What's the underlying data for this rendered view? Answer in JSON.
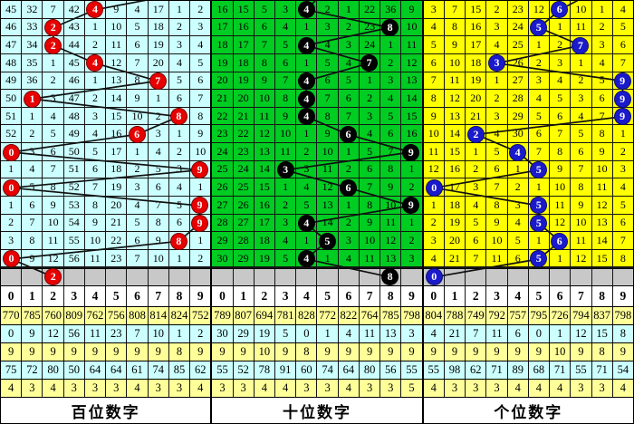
{
  "chart_data": {
    "type": "table",
    "digit_header": [
      "0",
      "1",
      "2",
      "3",
      "4",
      "5",
      "6",
      "7",
      "8",
      "9"
    ],
    "stat_row_colors": [
      "#ffff99",
      "#ccffff",
      "#ffff99",
      "#ccffff",
      "#ffff99"
    ],
    "gray_row_color": "#c8c8c8",
    "grid_line_color": "#151515",
    "panels": [
      {
        "name": "hundreds",
        "footer": "百位数字",
        "cell_color": "#ccffff",
        "ball_color": "#e60000",
        "line_top_exit_col": 9.5,
        "rows": [
          [
            "45",
            "32",
            "7",
            "42",
            "4",
            "9",
            "4",
            "17",
            "1",
            "2"
          ],
          [
            "46",
            "33",
            "2",
            "43",
            "1",
            "10",
            "5",
            "18",
            "2",
            "3"
          ],
          [
            "47",
            "34",
            "2",
            "44",
            "2",
            "11",
            "6",
            "19",
            "3",
            "4"
          ],
          [
            "48",
            "35",
            "1",
            "45",
            "4",
            "12",
            "7",
            "20",
            "4",
            "5"
          ],
          [
            "49",
            "36",
            "2",
            "46",
            "1",
            "13",
            "8",
            "7",
            "5",
            "6"
          ],
          [
            "50",
            "1",
            "3",
            "47",
            "2",
            "14",
            "9",
            "1",
            "6",
            "7"
          ],
          [
            "51",
            "1",
            "4",
            "48",
            "3",
            "15",
            "10",
            "2",
            "8",
            "8"
          ],
          [
            "52",
            "2",
            "5",
            "49",
            "4",
            "16",
            "6",
            "3",
            "1",
            "9"
          ],
          [
            "0",
            "3",
            "6",
            "50",
            "5",
            "17",
            "1",
            "4",
            "2",
            "10"
          ],
          [
            "1",
            "4",
            "7",
            "51",
            "6",
            "18",
            "2",
            "5",
            "3",
            "9"
          ],
          [
            "0",
            "5",
            "8",
            "52",
            "7",
            "19",
            "3",
            "6",
            "4",
            "1"
          ],
          [
            "1",
            "6",
            "9",
            "53",
            "8",
            "20",
            "4",
            "7",
            "5",
            "9"
          ],
          [
            "2",
            "7",
            "10",
            "54",
            "9",
            "21",
            "5",
            "8",
            "6",
            "9"
          ],
          [
            "3",
            "8",
            "11",
            "55",
            "10",
            "22",
            "6",
            "9",
            "8",
            "1"
          ],
          [
            "0",
            "9",
            "12",
            "56",
            "11",
            "23",
            "7",
            "10",
            "1",
            "2"
          ]
        ],
        "balls": [
          {
            "r": 0,
            "c": 4,
            "v": "4"
          },
          {
            "r": 1,
            "c": 2,
            "v": "2"
          },
          {
            "r": 2,
            "c": 2,
            "v": "2"
          },
          {
            "r": 3,
            "c": 4,
            "v": "4"
          },
          {
            "r": 4,
            "c": 7,
            "v": "7"
          },
          {
            "r": 5,
            "c": 1,
            "v": "1"
          },
          {
            "r": 6,
            "c": 8,
            "v": "8"
          },
          {
            "r": 7,
            "c": 6,
            "v": "6"
          },
          {
            "r": 8,
            "c": 0,
            "v": "0"
          },
          {
            "r": 9,
            "c": 9,
            "v": "9"
          },
          {
            "r": 10,
            "c": 0,
            "v": "0"
          },
          {
            "r": 11,
            "c": 9,
            "v": "9"
          },
          {
            "r": 12,
            "c": 9,
            "v": "9"
          },
          {
            "r": 13,
            "c": 8,
            "v": "8"
          },
          {
            "r": 14,
            "c": 0,
            "v": "0"
          },
          {
            "r": 15,
            "c": 2,
            "v": "2"
          }
        ],
        "stats": [
          [
            "770",
            "785",
            "760",
            "809",
            "762",
            "756",
            "808",
            "814",
            "824",
            "752"
          ],
          [
            "0",
            "9",
            "12",
            "56",
            "11",
            "23",
            "7",
            "10",
            "1",
            "2"
          ],
          [
            "9",
            "9",
            "9",
            "9",
            "9",
            "9",
            "9",
            "9",
            "8",
            "9"
          ],
          [
            "75",
            "72",
            "80",
            "50",
            "64",
            "64",
            "61",
            "74",
            "85",
            "62"
          ],
          [
            "4",
            "3",
            "4",
            "3",
            "3",
            "3",
            "4",
            "3",
            "3",
            "4"
          ]
        ]
      },
      {
        "name": "tens",
        "footer": "十位数字",
        "cell_color": "#00cc22",
        "ball_color": "#000000",
        "line_top_exit_col": 5.45,
        "rows": [
          [
            "16",
            "15",
            "5",
            "3",
            "4",
            "2",
            "1",
            "22",
            "36",
            "9"
          ],
          [
            "17",
            "16",
            "6",
            "4",
            "1",
            "3",
            "2",
            "23",
            "8",
            "10"
          ],
          [
            "18",
            "17",
            "7",
            "5",
            "4",
            "4",
            "3",
            "24",
            "1",
            "11"
          ],
          [
            "19",
            "18",
            "8",
            "6",
            "1",
            "5",
            "4",
            "7",
            "2",
            "12"
          ],
          [
            "20",
            "19",
            "9",
            "7",
            "4",
            "6",
            "5",
            "1",
            "3",
            "13"
          ],
          [
            "21",
            "20",
            "10",
            "8",
            "4",
            "7",
            "6",
            "2",
            "4",
            "14"
          ],
          [
            "22",
            "21",
            "11",
            "9",
            "4",
            "8",
            "7",
            "3",
            "5",
            "15"
          ],
          [
            "23",
            "22",
            "12",
            "10",
            "1",
            "9",
            "6",
            "4",
            "6",
            "16"
          ],
          [
            "24",
            "23",
            "13",
            "11",
            "2",
            "10",
            "1",
            "5",
            "7",
            "9"
          ],
          [
            "25",
            "24",
            "14",
            "3",
            "3",
            "11",
            "2",
            "6",
            "8",
            "1"
          ],
          [
            "26",
            "25",
            "15",
            "1",
            "4",
            "12",
            "6",
            "7",
            "9",
            "2"
          ],
          [
            "27",
            "26",
            "16",
            "2",
            "5",
            "13",
            "1",
            "8",
            "10",
            "9"
          ],
          [
            "28",
            "27",
            "17",
            "3",
            "4",
            "14",
            "2",
            "9",
            "11",
            "1"
          ],
          [
            "29",
            "28",
            "18",
            "4",
            "1",
            "5",
            "3",
            "10",
            "12",
            "2"
          ],
          [
            "30",
            "29",
            "19",
            "5",
            "4",
            "1",
            "4",
            "11",
            "13",
            "3"
          ]
        ],
        "balls": [
          {
            "r": 0,
            "c": 4,
            "v": "4"
          },
          {
            "r": 1,
            "c": 8,
            "v": "8"
          },
          {
            "r": 2,
            "c": 4,
            "v": "4"
          },
          {
            "r": 3,
            "c": 7,
            "v": "7"
          },
          {
            "r": 4,
            "c": 4,
            "v": "4"
          },
          {
            "r": 5,
            "c": 4,
            "v": "4"
          },
          {
            "r": 6,
            "c": 4,
            "v": "4"
          },
          {
            "r": 7,
            "c": 6,
            "v": "6"
          },
          {
            "r": 8,
            "c": 9,
            "v": "9"
          },
          {
            "r": 9,
            "c": 3,
            "v": "3"
          },
          {
            "r": 10,
            "c": 6,
            "v": "6"
          },
          {
            "r": 11,
            "c": 9,
            "v": "9"
          },
          {
            "r": 12,
            "c": 4,
            "v": "4"
          },
          {
            "r": 13,
            "c": 5,
            "v": "5"
          },
          {
            "r": 14,
            "c": 4,
            "v": "4"
          },
          {
            "r": 15,
            "c": 8,
            "v": "8"
          }
        ],
        "stats": [
          [
            "789",
            "807",
            "694",
            "781",
            "828",
            "772",
            "822",
            "764",
            "785",
            "798"
          ],
          [
            "30",
            "29",
            "19",
            "5",
            "0",
            "1",
            "4",
            "11",
            "13",
            "3"
          ],
          [
            "9",
            "9",
            "10",
            "9",
            "8",
            "9",
            "9",
            "9",
            "9",
            "9"
          ],
          [
            "55",
            "52",
            "78",
            "91",
            "60",
            "74",
            "64",
            "80",
            "56",
            "55"
          ],
          [
            "3",
            "3",
            "4",
            "4",
            "3",
            "3",
            "4",
            "3",
            "3",
            "5"
          ]
        ]
      },
      {
        "name": "units",
        "footer": "个位数字",
        "cell_color": "#ffff00",
        "ball_color": "#1a1acc",
        "line_top_exit_col": 8.3,
        "rows": [
          [
            "3",
            "7",
            "15",
            "2",
            "23",
            "12",
            "6",
            "10",
            "1",
            "4"
          ],
          [
            "4",
            "8",
            "16",
            "3",
            "24",
            "5",
            "1",
            "11",
            "2",
            "5"
          ],
          [
            "5",
            "9",
            "17",
            "4",
            "25",
            "1",
            "2",
            "7",
            "3",
            "6"
          ],
          [
            "6",
            "10",
            "18",
            "3",
            "26",
            "2",
            "3",
            "1",
            "4",
            "7"
          ],
          [
            "7",
            "11",
            "19",
            "1",
            "27",
            "3",
            "4",
            "2",
            "5",
            "9"
          ],
          [
            "8",
            "12",
            "20",
            "2",
            "28",
            "4",
            "5",
            "3",
            "6",
            "9"
          ],
          [
            "9",
            "13",
            "21",
            "3",
            "29",
            "5",
            "6",
            "4",
            "7",
            "9"
          ],
          [
            "10",
            "14",
            "2",
            "4",
            "30",
            "6",
            "7",
            "5",
            "8",
            "1"
          ],
          [
            "11",
            "15",
            "1",
            "5",
            "4",
            "7",
            "8",
            "6",
            "9",
            "2"
          ],
          [
            "12",
            "16",
            "2",
            "6",
            "1",
            "5",
            "9",
            "7",
            "10",
            "3"
          ],
          [
            "0",
            "17",
            "3",
            "7",
            "2",
            "1",
            "10",
            "8",
            "11",
            "4"
          ],
          [
            "1",
            "18",
            "4",
            "8",
            "3",
            "5",
            "11",
            "9",
            "12",
            "5"
          ],
          [
            "2",
            "19",
            "5",
            "9",
            "4",
            "5",
            "12",
            "10",
            "13",
            "6"
          ],
          [
            "3",
            "20",
            "6",
            "10",
            "5",
            "1",
            "6",
            "11",
            "14",
            "7"
          ],
          [
            "4",
            "21",
            "7",
            "11",
            "6",
            "5",
            "1",
            "12",
            "15",
            "8"
          ]
        ],
        "balls": [
          {
            "r": 0,
            "c": 6,
            "v": "6"
          },
          {
            "r": 1,
            "c": 5,
            "v": "5"
          },
          {
            "r": 2,
            "c": 7,
            "v": "7"
          },
          {
            "r": 3,
            "c": 3,
            "v": "3"
          },
          {
            "r": 4,
            "c": 9,
            "v": "9"
          },
          {
            "r": 5,
            "c": 9,
            "v": "9"
          },
          {
            "r": 6,
            "c": 9,
            "v": "9"
          },
          {
            "r": 7,
            "c": 2,
            "v": "2"
          },
          {
            "r": 8,
            "c": 4,
            "v": "4"
          },
          {
            "r": 9,
            "c": 5,
            "v": "5"
          },
          {
            "r": 10,
            "c": 0,
            "v": "0"
          },
          {
            "r": 11,
            "c": 5,
            "v": "5"
          },
          {
            "r": 12,
            "c": 5,
            "v": "5"
          },
          {
            "r": 13,
            "c": 6,
            "v": "6"
          },
          {
            "r": 14,
            "c": 5,
            "v": "5"
          },
          {
            "r": 15,
            "c": 0,
            "v": "0"
          }
        ],
        "stats": [
          [
            "804",
            "788",
            "749",
            "792",
            "757",
            "795",
            "726",
            "794",
            "837",
            "798"
          ],
          [
            "4",
            "21",
            "7",
            "11",
            "6",
            "0",
            "1",
            "12",
            "15",
            "8"
          ],
          [
            "9",
            "9",
            "9",
            "9",
            "9",
            "9",
            "10",
            "9",
            "8",
            "9"
          ],
          [
            "55",
            "98",
            "62",
            "71",
            "89",
            "68",
            "71",
            "55",
            "71",
            "54"
          ],
          [
            "4",
            "3",
            "3",
            "3",
            "4",
            "4",
            "4",
            "3",
            "3",
            "4"
          ]
        ]
      }
    ]
  }
}
